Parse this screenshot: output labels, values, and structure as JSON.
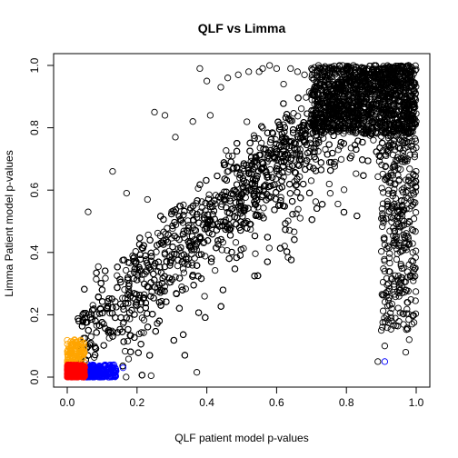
{
  "chart_data": {
    "type": "scatter",
    "title": "QLF vs Limma",
    "xlabel": "QLF patient model p-values",
    "ylabel": "Limma Patient model p-values",
    "xlim": [
      0,
      1
    ],
    "ylim": [
      0,
      1
    ],
    "xticks": [
      "0.0",
      "0.2",
      "0.4",
      "0.6",
      "0.8",
      "1.0"
    ],
    "yticks": [
      "0.0",
      "0.2",
      "0.4",
      "0.6",
      "0.8",
      "1.0"
    ],
    "tick_values": [
      0,
      0.2,
      0.4,
      0.6,
      0.8,
      1.0
    ],
    "marker": "open-circle",
    "grid": false,
    "legend": "none",
    "series": [
      {
        "color": "#000000",
        "x": [
          0.06,
          0.13,
          0.17,
          0.23,
          0.25,
          0.28,
          0.31,
          0.36,
          0.38,
          0.4,
          0.41,
          0.44,
          0.46,
          0.49,
          0.52,
          0.55,
          0.56,
          0.58,
          0.6,
          0.62,
          0.64,
          0.66,
          0.68,
          0.7,
          0.72,
          0.74,
          0.76,
          0.78,
          0.8,
          0.82,
          0.84,
          0.86,
          0.88,
          0.9,
          0.92,
          0.94,
          0.95,
          0.96,
          0.97,
          0.98,
          0.99,
          1.0,
          0.93,
          0.97,
          0.98,
          0.91,
          0.95,
          0.99,
          0.9,
          0.94,
          0.92,
          0.97,
          0.89,
          0.96,
          0.99,
          0.93,
          0.91
        ],
        "y": [
          0.53,
          0.66,
          0.59,
          0.57,
          0.85,
          0.84,
          0.77,
          0.82,
          0.99,
          0.95,
          0.84,
          0.93,
          0.96,
          0.97,
          0.98,
          0.98,
          0.99,
          1.0,
          0.99,
          0.94,
          0.99,
          0.98,
          0.97,
          0.99,
          1.0,
          0.99,
          0.98,
          1.0,
          0.99,
          1.0,
          0.98,
          0.99,
          1.0,
          0.99,
          0.98,
          0.97,
          0.99,
          0.95,
          0.92,
          0.88,
          0.84,
          0.82,
          0.22,
          0.28,
          0.12,
          0.34,
          0.27,
          0.4,
          0.15,
          0.45,
          0.3,
          0.08,
          0.05,
          0.55,
          0.62,
          0.18,
          0.1
        ]
      },
      {
        "color": "#0000ff",
        "x": [
          0.91,
          0.16,
          0.14,
          0.12,
          0.1,
          0.09
        ],
        "y": [
          0.05,
          0.03,
          0.02,
          0.025,
          0.02,
          0.015
        ]
      }
    ],
    "clusters": [
      {
        "color": "#000000",
        "kind": "band"
      },
      {
        "color": "#0000ff",
        "xrange": [
          0.04,
          0.14
        ],
        "yrange": [
          0.0,
          0.04
        ]
      },
      {
        "color": "#ffa500",
        "xrange": [
          0.0,
          0.05
        ],
        "yrange": [
          0.03,
          0.12
        ]
      },
      {
        "color": "#ff0000",
        "xrange": [
          0.0,
          0.05
        ],
        "yrange": [
          0.0,
          0.04
        ]
      }
    ]
  }
}
